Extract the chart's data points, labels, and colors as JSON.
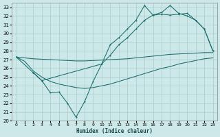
{
  "bg_color": "#cce8e8",
  "grid_color": "#aacccc",
  "line_color": "#1a6b6b",
  "xlabel": "Humidex (Indice chaleur)",
  "xlim": [
    -0.5,
    23.5
  ],
  "ylim": [
    20,
    33.5
  ],
  "xticks": [
    0,
    1,
    2,
    3,
    4,
    5,
    6,
    7,
    8,
    9,
    10,
    11,
    12,
    13,
    14,
    15,
    16,
    17,
    18,
    19,
    20,
    21,
    22,
    23
  ],
  "yticks": [
    20,
    21,
    22,
    23,
    24,
    25,
    26,
    27,
    28,
    29,
    30,
    31,
    32,
    33
  ],
  "line_flat_x": [
    0,
    1,
    2,
    3,
    4,
    5,
    6,
    7,
    8,
    9,
    10,
    11,
    12,
    13,
    14,
    15,
    16,
    17,
    18,
    19,
    20,
    21,
    22,
    23
  ],
  "line_flat_y": [
    27.3,
    27.2,
    27.1,
    27.05,
    27.0,
    26.95,
    26.9,
    26.85,
    26.85,
    26.9,
    26.95,
    27.0,
    27.05,
    27.1,
    27.2,
    27.3,
    27.4,
    27.5,
    27.6,
    27.65,
    27.7,
    27.75,
    27.8,
    27.8
  ],
  "line_min_x": [
    0,
    1,
    2,
    3,
    4,
    5,
    6,
    7,
    8,
    9,
    10,
    11,
    12,
    13,
    14,
    15,
    16,
    17,
    18,
    19,
    20,
    21,
    22,
    23
  ],
  "line_min_y": [
    27.3,
    26.8,
    25.7,
    25.0,
    24.5,
    24.2,
    24.0,
    23.8,
    23.7,
    23.8,
    24.0,
    24.2,
    24.5,
    24.8,
    25.1,
    25.4,
    25.7,
    26.0,
    26.2,
    26.5,
    26.7,
    26.9,
    27.1,
    27.2
  ],
  "line_mid_x": [
    2,
    3,
    4,
    5,
    6,
    7,
    8,
    9,
    10,
    11,
    12,
    13,
    14,
    15,
    16,
    17,
    18,
    19,
    20,
    21,
    22,
    23
  ],
  "line_mid_y": [
    25.5,
    24.6,
    23.2,
    23.3,
    22.0,
    20.4,
    22.2,
    24.5,
    26.5,
    27.5,
    28.7,
    29.5,
    30.5,
    31.5,
    32.1,
    32.2,
    32.1,
    32.2,
    32.3,
    31.5,
    30.5,
    28.0
  ],
  "line_max_x": [
    0,
    2,
    3,
    10,
    11,
    12,
    13,
    14,
    15,
    16,
    17,
    18,
    19,
    20,
    21,
    22,
    23
  ],
  "line_max_y": [
    27.3,
    25.5,
    24.6,
    26.5,
    28.7,
    29.5,
    30.5,
    31.5,
    33.2,
    32.1,
    32.4,
    33.2,
    32.3,
    32.0,
    31.5,
    30.5,
    28.0
  ]
}
